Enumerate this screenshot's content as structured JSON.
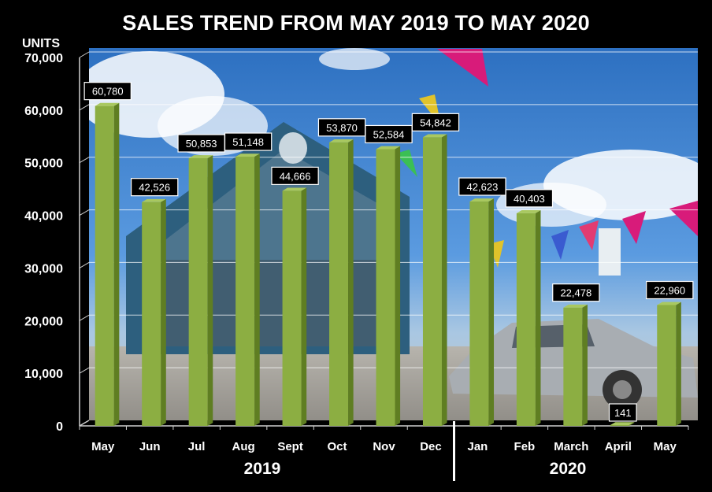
{
  "title": "SALES TREND FROM MAY 2019 TO MAY 2020",
  "units_label": "UNITS",
  "colors": {
    "bar_front": "#8cae42",
    "bar_side": "#5f7e22",
    "bar_top": "#a9c860",
    "label_bg": "#000000",
    "label_text": "#ffffff",
    "axis_text": "#ffffff"
  },
  "chart_data": {
    "type": "bar",
    "title": "SALES TREND FROM MAY 2019 TO MAY 2020",
    "ylabel": "UNITS",
    "ylim": [
      0,
      70000
    ],
    "yticks": [
      "0",
      "10,000",
      "20,000",
      "30,000",
      "40,000",
      "50,000",
      "60,000",
      "70,000"
    ],
    "categories": [
      "May",
      "Jun",
      "Jul",
      "Aug",
      "Sept",
      "Oct",
      "Nov",
      "Dec",
      "Jan",
      "Feb",
      "March",
      "April",
      "May"
    ],
    "values": [
      60780,
      42526,
      50853,
      51148,
      44666,
      53870,
      52584,
      54842,
      42623,
      40403,
      22478,
      141,
      22960
    ],
    "value_labels": [
      "60,780",
      "42,526",
      "50,853",
      "51,148",
      "44,666",
      "53,870",
      "52,584",
      "54,842",
      "42,623",
      "40,403",
      "22,478",
      "141",
      "22,960"
    ],
    "groups": [
      {
        "label": "2019",
        "span": [
          0,
          7
        ]
      },
      {
        "label": "2020",
        "span": [
          8,
          12
        ]
      }
    ],
    "grid": true,
    "background": "photo of car dealership with pennant flags and blue sky"
  }
}
